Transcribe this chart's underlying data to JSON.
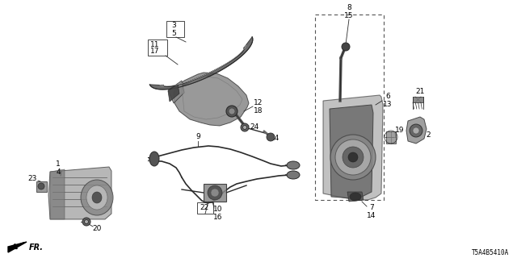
{
  "bg_color": "#ffffff",
  "diagram_code": "T5A4B5410A",
  "line_color": "#2a2a2a",
  "gray_fill": "#888888",
  "dark_fill": "#444444",
  "light_fill": "#cccccc"
}
